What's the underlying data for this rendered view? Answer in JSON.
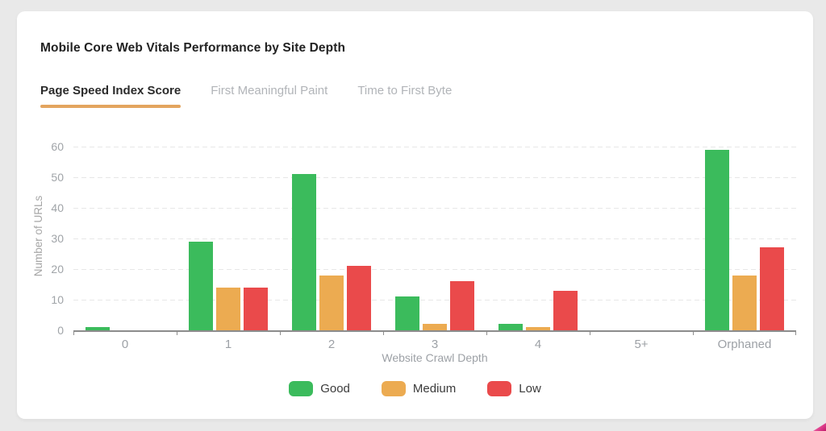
{
  "page": {
    "background_color": "#e9e9e9"
  },
  "card": {
    "title": "Mobile Core Web Vitals Performance by Site Depth",
    "tabs": [
      {
        "label": "Page Speed Index Score",
        "active": true
      },
      {
        "label": "First Meaningful Paint",
        "active": false
      },
      {
        "label": "Time to First Byte",
        "active": false
      }
    ],
    "active_tab_underline_color": "#e3a55f"
  },
  "chart_data": {
    "type": "bar",
    "title": "Mobile Core Web Vitals Performance by Site Depth",
    "categories": [
      "0",
      "1",
      "2",
      "3",
      "4",
      "5+",
      "Orphaned"
    ],
    "series": [
      {
        "name": "Good",
        "color": "#3bbb5c",
        "values": [
          1,
          29,
          51,
          11,
          2,
          0,
          59
        ]
      },
      {
        "name": "Medium",
        "color": "#ecab51",
        "values": [
          0,
          14,
          18,
          2,
          1,
          0,
          18
        ]
      },
      {
        "name": "Low",
        "color": "#ea4a4b",
        "values": [
          0,
          14,
          21,
          16,
          13,
          0,
          27
        ]
      }
    ],
    "xlabel": "Website Crawl Depth",
    "ylabel": "Number of URLs",
    "ylim": [
      0,
      60
    ],
    "ytick_step": 10,
    "grid": "horizontal-dashed",
    "axis_text_color": "#9da1a6",
    "legend_position": "bottom"
  },
  "decoration": {
    "corner_accent_colors": [
      "#f5a7cc",
      "#c2186b"
    ]
  }
}
